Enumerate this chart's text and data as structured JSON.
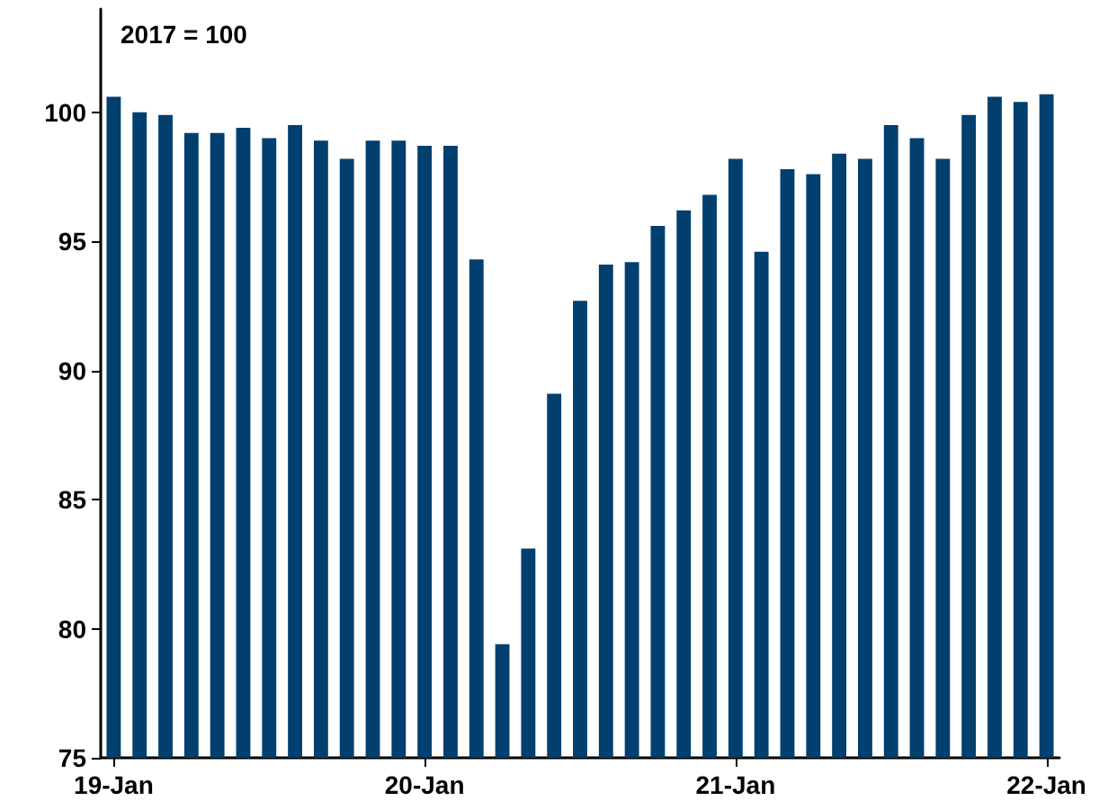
{
  "chart_data": {
    "type": "bar",
    "annotations": [
      "2017 = 100"
    ],
    "categories": [
      "19-Jan",
      null,
      null,
      null,
      null,
      null,
      null,
      null,
      null,
      null,
      null,
      null,
      "20-Jan",
      null,
      null,
      null,
      null,
      null,
      null,
      null,
      null,
      null,
      null,
      null,
      "21-Jan",
      null,
      null,
      null,
      null,
      null,
      null,
      null,
      null,
      null,
      null,
      null,
      "22-Jan"
    ],
    "values": [
      100.6,
      100.0,
      99.9,
      99.2,
      99.2,
      99.4,
      99.0,
      99.5,
      98.9,
      98.2,
      98.9,
      98.9,
      98.7,
      98.7,
      94.3,
      79.4,
      83.1,
      89.1,
      92.7,
      94.1,
      94.2,
      95.6,
      96.2,
      96.8,
      98.2,
      94.6,
      97.8,
      97.6,
      98.4,
      98.2,
      99.5,
      99.0,
      98.2,
      99.9,
      100.6,
      100.4,
      100.7
    ],
    "color": "#003f6e",
    "ylim": [
      75,
      104
    ],
    "yticks": [
      75,
      80,
      85,
      90,
      95,
      100
    ],
    "grid": false
  }
}
